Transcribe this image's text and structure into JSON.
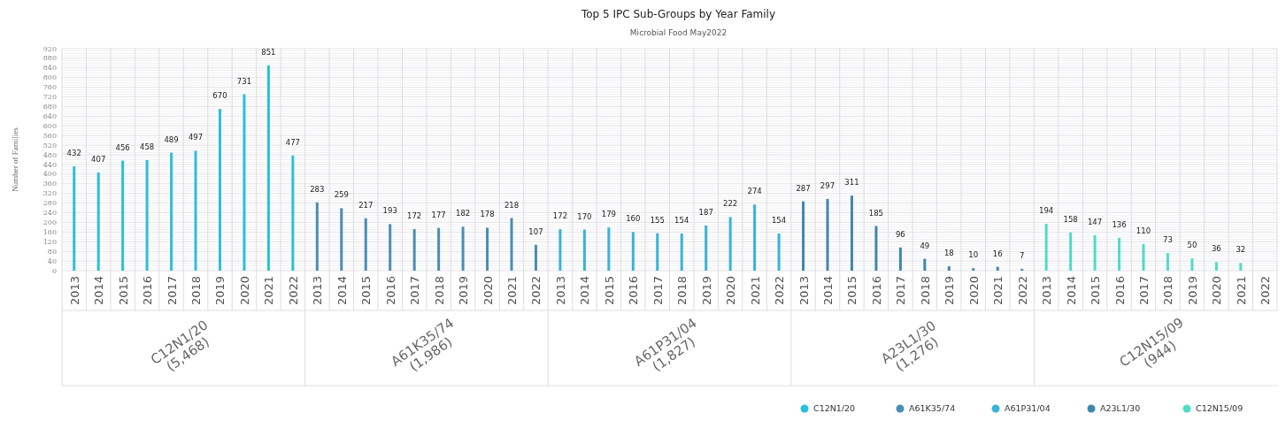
{
  "chart_data": {
    "type": "bar",
    "title": "Top 5 IPC Sub-Groups by Year Family",
    "subtitle": "Microbial Food May2022",
    "ylabel": "Number of Families",
    "categories": [
      "2013",
      "2014",
      "2015",
      "2016",
      "2017",
      "2018",
      "2019",
      "2020",
      "2021",
      "2022",
      "2013",
      "2014",
      "2015",
      "2016",
      "2017",
      "2018",
      "2019",
      "2020",
      "2021",
      "2022",
      "2013",
      "2014",
      "2015",
      "2016",
      "2017",
      "2018",
      "2019",
      "2020",
      "2021",
      "2022",
      "2013",
      "2014",
      "2015",
      "2016",
      "2017",
      "2018",
      "2019",
      "2020",
      "2021",
      "2022",
      "2013",
      "2014",
      "2015",
      "2016",
      "2017",
      "2018",
      "2019",
      "2020",
      "2021",
      "2022"
    ],
    "series": [
      {
        "name": "C12N1/20",
        "color": "#2bbfdc",
        "values": [
          432,
          407,
          456,
          458,
          489,
          497,
          670,
          731,
          851,
          477,
          null,
          null,
          null,
          null,
          null,
          null,
          null,
          null,
          null,
          null,
          null,
          null,
          null,
          null,
          null,
          null,
          null,
          null,
          null,
          null,
          null,
          null,
          null,
          null,
          null,
          null,
          null,
          null,
          null,
          null,
          null,
          null,
          null,
          null,
          null,
          null,
          null,
          null,
          null,
          null
        ]
      },
      {
        "name": "A61K35/74",
        "color": "#4a8db5",
        "values": [
          null,
          null,
          null,
          null,
          null,
          null,
          null,
          null,
          null,
          null,
          283,
          259,
          217,
          193,
          172,
          177,
          182,
          178,
          218,
          107,
          null,
          null,
          null,
          null,
          null,
          null,
          null,
          null,
          null,
          null,
          null,
          null,
          null,
          null,
          null,
          null,
          null,
          null,
          null,
          null,
          null,
          null,
          null,
          null,
          null,
          null,
          null,
          null,
          null,
          null
        ]
      },
      {
        "name": "A61P31/04",
        "color": "#36b4da",
        "values": [
          null,
          null,
          null,
          null,
          null,
          null,
          null,
          null,
          null,
          null,
          null,
          null,
          null,
          null,
          null,
          null,
          null,
          null,
          null,
          null,
          172,
          170,
          179,
          160,
          155,
          154,
          187,
          222,
          274,
          154,
          null,
          null,
          null,
          null,
          null,
          null,
          null,
          null,
          null,
          null,
          null,
          null,
          null,
          null,
          null,
          null,
          null,
          null,
          null,
          null
        ]
      },
      {
        "name": "A23L1/30",
        "color": "#3f87ad",
        "values": [
          null,
          null,
          null,
          null,
          null,
          null,
          null,
          null,
          null,
          null,
          null,
          null,
          null,
          null,
          null,
          null,
          null,
          null,
          null,
          null,
          null,
          null,
          null,
          null,
          null,
          null,
          null,
          null,
          null,
          null,
          287,
          297,
          311,
          185,
          96,
          49,
          18,
          10,
          16,
          7,
          null,
          null,
          null,
          null,
          null,
          null,
          null,
          null,
          null,
          null
        ]
      },
      {
        "name": "C12N15/09",
        "color": "#4fdcc6",
        "values": [
          null,
          null,
          null,
          null,
          null,
          null,
          null,
          null,
          null,
          null,
          null,
          null,
          null,
          null,
          null,
          null,
          null,
          null,
          null,
          null,
          null,
          null,
          null,
          null,
          null,
          null,
          null,
          null,
          null,
          null,
          null,
          null,
          null,
          null,
          null,
          null,
          null,
          null,
          null,
          null,
          194,
          158,
          147,
          136,
          110,
          73,
          50,
          36,
          32,
          null
        ]
      }
    ],
    "annotations": [
      "C12N1/20 (5,468)",
      "A61K35/74 (1,986)",
      "A61P31/04 (1,827)",
      "A23L1/30 (1,276)",
      "C12N15/09 (944)"
    ],
    "ylim": [
      0,
      920
    ],
    "yticks": [
      0,
      40,
      80,
      120,
      160,
      200,
      240,
      280,
      320,
      360,
      400,
      440,
      480,
      520,
      560,
      600,
      640,
      680,
      720,
      760,
      800,
      840,
      880,
      920
    ],
    "grid": true,
    "data_labels": true,
    "legend": "bottom right"
  }
}
